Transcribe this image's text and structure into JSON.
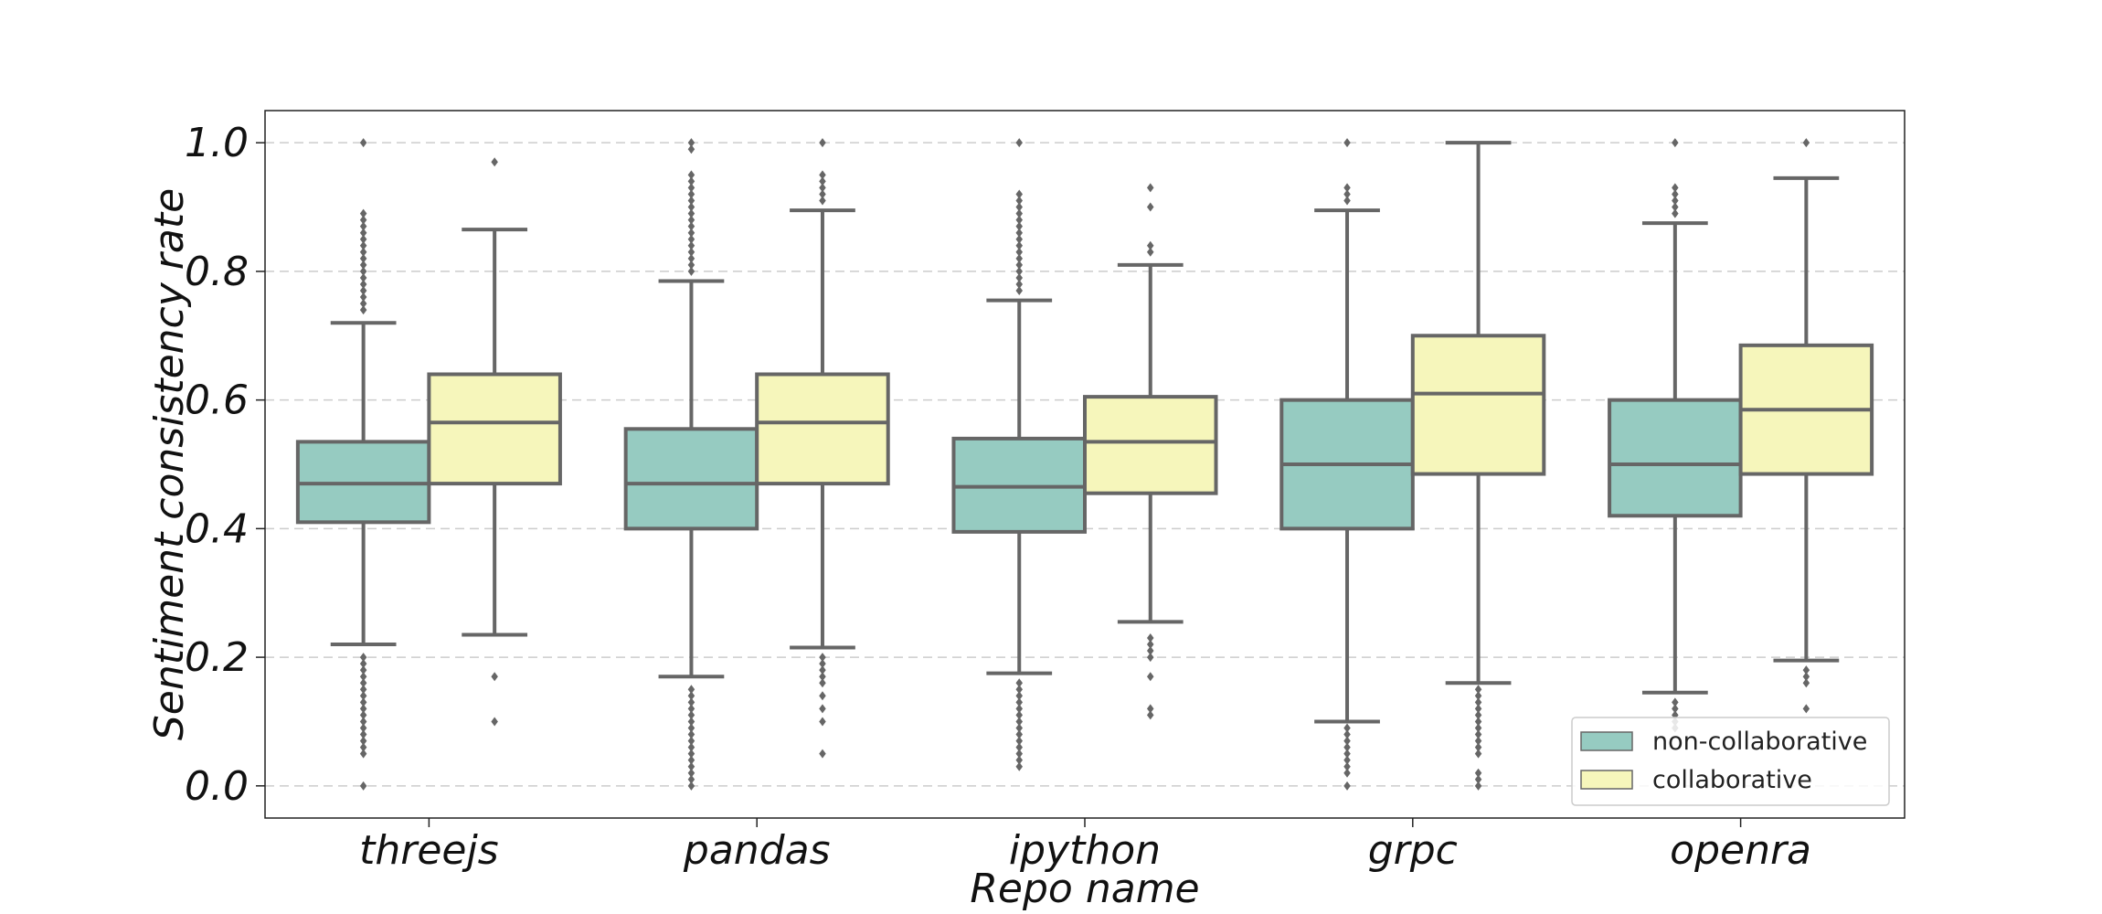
{
  "chart_data": {
    "type": "box",
    "title": "",
    "xlabel": "Repo name",
    "ylabel": "Sentiment consistency rate",
    "categories": [
      "threejs",
      "pandas",
      "ipython",
      "grpc",
      "openra"
    ],
    "ylim": [
      -0.05,
      1.05
    ],
    "yticks": [
      "0.0",
      "0.2",
      "0.4",
      "0.6",
      "0.8",
      "1.0"
    ],
    "grid": "horizontal-dashed",
    "legend_position": "lower-right",
    "colors": {
      "non-collaborative": "#96cbc1",
      "collaborative": "#f6f6bb",
      "line": "#666666"
    },
    "series": [
      {
        "name": "non-collaborative",
        "boxes": [
          {
            "whislo": 0.22,
            "q1": 0.41,
            "med": 0.47,
            "q3": 0.535,
            "whishi": 0.72,
            "fliers_high": [
              0.74,
              0.75,
              0.76,
              0.77,
              0.78,
              0.79,
              0.8,
              0.81,
              0.82,
              0.83,
              0.84,
              0.85,
              0.86,
              0.87,
              0.88,
              0.89,
              1.0
            ],
            "fliers_low": [
              0.0,
              0.05,
              0.06,
              0.07,
              0.08,
              0.09,
              0.1,
              0.11,
              0.12,
              0.13,
              0.14,
              0.15,
              0.16,
              0.17,
              0.18,
              0.19,
              0.2
            ]
          },
          {
            "whislo": 0.17,
            "q1": 0.4,
            "med": 0.47,
            "q3": 0.555,
            "whishi": 0.785,
            "fliers_high": [
              0.8,
              0.81,
              0.82,
              0.83,
              0.84,
              0.85,
              0.86,
              0.87,
              0.88,
              0.89,
              0.9,
              0.91,
              0.92,
              0.93,
              0.94,
              0.95,
              0.99,
              1.0
            ],
            "fliers_low": [
              0.0,
              0.01,
              0.02,
              0.03,
              0.04,
              0.05,
              0.06,
              0.07,
              0.08,
              0.09,
              0.1,
              0.11,
              0.12,
              0.13,
              0.14,
              0.15
            ]
          },
          {
            "whislo": 0.175,
            "q1": 0.395,
            "med": 0.465,
            "q3": 0.54,
            "whishi": 0.755,
            "fliers_high": [
              0.77,
              0.78,
              0.79,
              0.8,
              0.81,
              0.82,
              0.83,
              0.84,
              0.85,
              0.86,
              0.87,
              0.88,
              0.89,
              0.9,
              0.91,
              0.92,
              1.0
            ],
            "fliers_low": [
              0.03,
              0.04,
              0.05,
              0.06,
              0.07,
              0.08,
              0.09,
              0.1,
              0.11,
              0.12,
              0.13,
              0.14,
              0.15,
              0.16
            ]
          },
          {
            "whislo": 0.1,
            "q1": 0.4,
            "med": 0.5,
            "q3": 0.6,
            "whishi": 0.895,
            "fliers_high": [
              0.91,
              0.92,
              0.93,
              1.0
            ],
            "fliers_low": [
              0.0,
              0.02,
              0.03,
              0.04,
              0.05,
              0.06,
              0.07,
              0.08,
              0.09
            ]
          },
          {
            "whislo": 0.145,
            "q1": 0.42,
            "med": 0.5,
            "q3": 0.6,
            "whishi": 0.875,
            "fliers_high": [
              0.89,
              0.9,
              0.91,
              0.92,
              0.93,
              1.0
            ],
            "fliers_low": [
              0.09,
              0.1,
              0.11,
              0.12,
              0.13
            ]
          }
        ]
      },
      {
        "name": "collaborative",
        "boxes": [
          {
            "whislo": 0.235,
            "q1": 0.47,
            "med": 0.565,
            "q3": 0.64,
            "whishi": 0.865,
            "fliers_high": [
              0.97
            ],
            "fliers_low": [
              0.1,
              0.17
            ]
          },
          {
            "whislo": 0.215,
            "q1": 0.47,
            "med": 0.565,
            "q3": 0.64,
            "whishi": 0.895,
            "fliers_high": [
              0.91,
              0.92,
              0.93,
              0.94,
              0.95,
              1.0
            ],
            "fliers_low": [
              0.05,
              0.1,
              0.12,
              0.14,
              0.16,
              0.17,
              0.18,
              0.19,
              0.2
            ]
          },
          {
            "whislo": 0.255,
            "q1": 0.455,
            "med": 0.535,
            "q3": 0.605,
            "whishi": 0.81,
            "fliers_high": [
              0.83,
              0.84,
              0.9,
              0.93
            ],
            "fliers_low": [
              0.11,
              0.12,
              0.17,
              0.2,
              0.21,
              0.22,
              0.23
            ]
          },
          {
            "whislo": 0.16,
            "q1": 0.485,
            "med": 0.61,
            "q3": 0.7,
            "whishi": 1.0,
            "fliers_high": [],
            "fliers_low": [
              0.0,
              0.01,
              0.02,
              0.05,
              0.06,
              0.07,
              0.08,
              0.09,
              0.1,
              0.11,
              0.12,
              0.13,
              0.14,
              0.15
            ]
          },
          {
            "whislo": 0.195,
            "q1": 0.485,
            "med": 0.585,
            "q3": 0.685,
            "whishi": 0.945,
            "fliers_high": [
              1.0
            ],
            "fliers_low": [
              0.12,
              0.16,
              0.17,
              0.18
            ]
          }
        ]
      }
    ]
  }
}
